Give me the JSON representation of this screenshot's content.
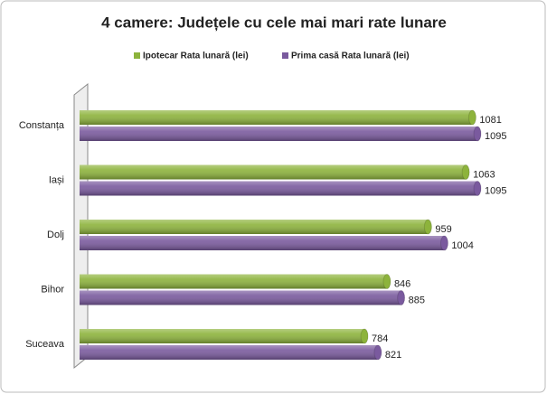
{
  "chart_data": {
    "type": "bar",
    "orientation": "horizontal",
    "title": "4 camere: Județele cu cele mai mari rate lunare",
    "categories": [
      "Constanța",
      "Iași",
      "Dolj",
      "Bihor",
      "Suceava"
    ],
    "series": [
      {
        "name": "Ipotecar Rata lunară (lei)",
        "color": "#8db33c",
        "values": [
          1081,
          1063,
          959,
          846,
          784
        ]
      },
      {
        "name": "Prima casă Rata lunară (lei)",
        "color": "#7a5a9e",
        "values": [
          1095,
          1095,
          1004,
          885,
          821
        ]
      }
    ],
    "legend": "top"
  }
}
